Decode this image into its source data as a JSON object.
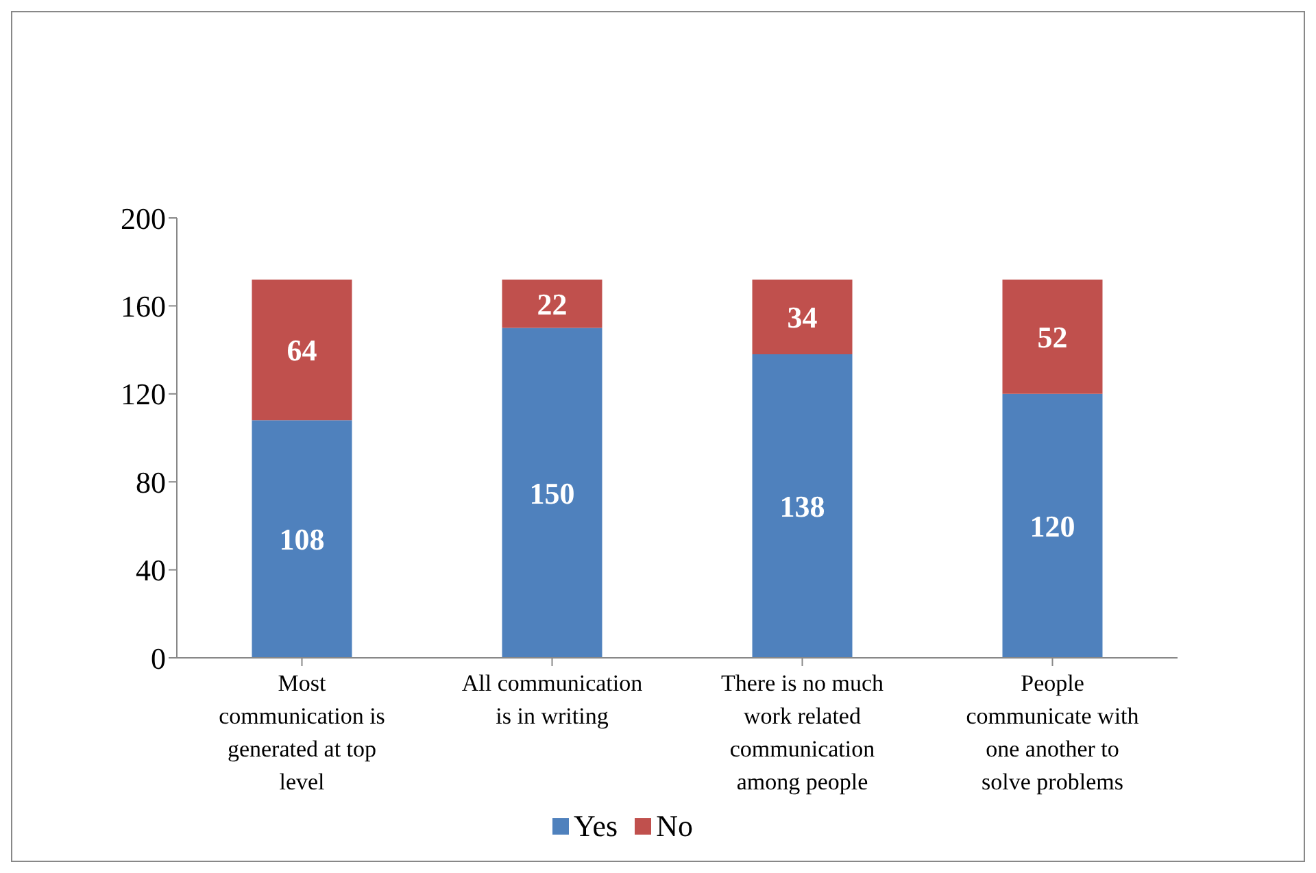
{
  "chart_data": {
    "type": "bar",
    "stacked": true,
    "categories": [
      "Most communication is generated at top level",
      "All communication is in writing",
      "There is no much work related communication among people",
      "People communicate with one another to solve problems"
    ],
    "series": [
      {
        "name": "Yes",
        "color": "#4f81bd",
        "values": [
          108,
          150,
          138,
          120
        ]
      },
      {
        "name": "No",
        "color": "#c0504d",
        "values": [
          64,
          22,
          34,
          52
        ]
      }
    ],
    "ylim": [
      0,
      200
    ],
    "yticks": [
      0,
      40,
      80,
      120,
      160,
      200
    ],
    "data_labels": true,
    "legend": "bottom",
    "grid": false
  }
}
